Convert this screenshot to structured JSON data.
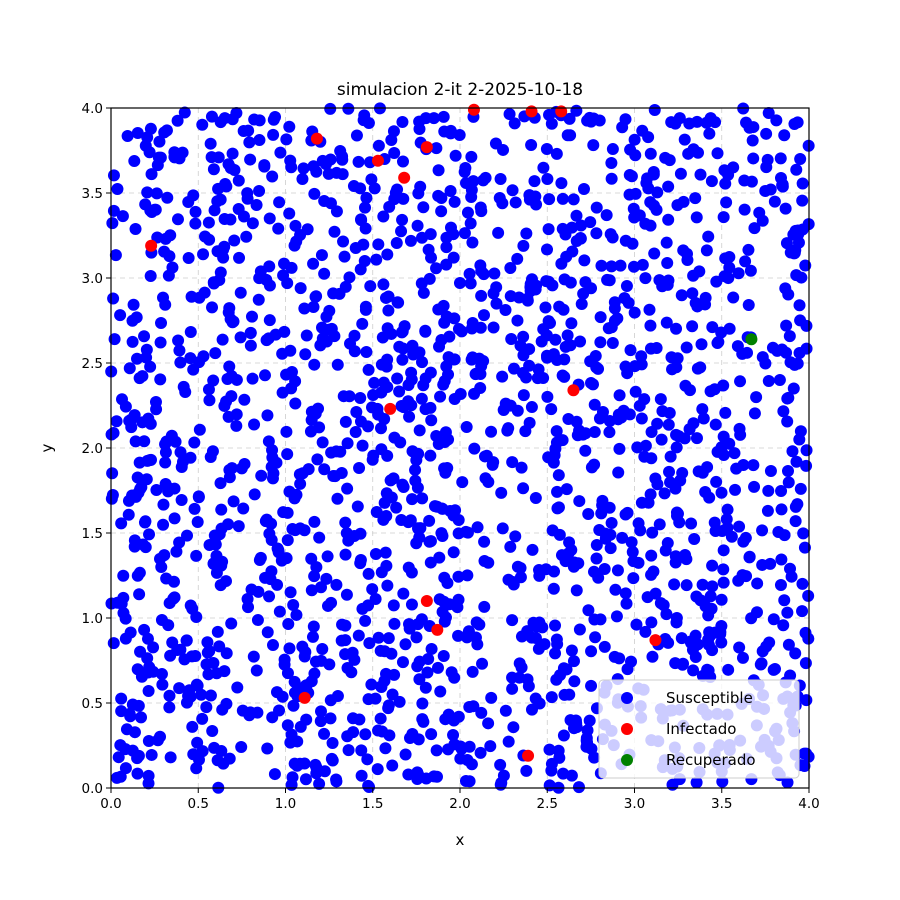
{
  "chart_data": {
    "type": "scatter",
    "title": "simulacion 2-it 2-2025-10-18",
    "xlabel": "x",
    "ylabel": "y",
    "xlim": [
      0,
      4
    ],
    "ylim": [
      0,
      4
    ],
    "xticks": [
      "0.0",
      "0.5",
      "1.0",
      "1.5",
      "2.0",
      "2.5",
      "3.0",
      "3.5",
      "4.0"
    ],
    "yticks": [
      "0.0",
      "0.5",
      "1.0",
      "1.5",
      "2.0",
      "2.5",
      "3.0",
      "3.5",
      "4.0"
    ],
    "grid": true,
    "legend_position": "bottom-right",
    "series": [
      {
        "name": "Susceptible",
        "color": "#0000ff",
        "density_note_hidden": true,
        "count": 1900,
        "seed": 20251018
      },
      {
        "name": "Infectado",
        "color": "#ff0000",
        "points": [
          [
            0.23,
            3.19
          ],
          [
            1.18,
            3.82
          ],
          [
            1.53,
            3.69
          ],
          [
            1.68,
            3.59
          ],
          [
            1.81,
            3.77
          ],
          [
            2.08,
            3.99
          ],
          [
            2.41,
            3.98
          ],
          [
            2.58,
            3.98
          ],
          [
            1.6,
            2.23
          ],
          [
            2.65,
            2.34
          ],
          [
            1.81,
            1.1
          ],
          [
            1.87,
            0.93
          ],
          [
            3.12,
            0.87
          ],
          [
            1.11,
            0.53
          ],
          [
            2.39,
            0.19
          ]
        ]
      },
      {
        "name": "Recuperado",
        "color": "#008000",
        "points": [
          [
            3.67,
            2.64
          ]
        ]
      }
    ]
  }
}
